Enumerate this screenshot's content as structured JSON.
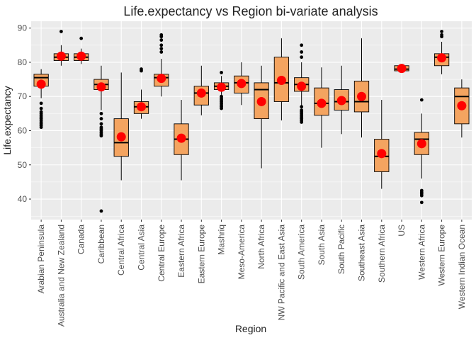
{
  "chart_data": {
    "type": "boxplot",
    "title": "Life.expectancy vs Region bi-variate analysis",
    "xlabel": "Region",
    "ylabel": "Life.expectancy",
    "ylim": [
      34,
      92
    ],
    "yticks": [
      40,
      50,
      60,
      70,
      80,
      90
    ],
    "grid": true,
    "box_color": "#f4a460",
    "mean_color": "#ff0000",
    "panel_color": "#ebebeb",
    "categories": [
      "Arabian Peninsula",
      "Australia and New Zealand",
      "Canada",
      "Caribbean",
      "Central Africa",
      "Central Asia",
      "Central Europe",
      "Eastern Africa",
      "Eastern Europe",
      "Mashriq",
      "Meso-America",
      "North Africa",
      "NW Pacific and East Asia",
      "South America",
      "South Asia",
      "South Pacific",
      "Southeast Asia",
      "Southern Africa",
      "US",
      "Western Africa",
      "Western Europe",
      "Western Indian Ocean"
    ],
    "boxes": [
      {
        "wlo": 69.5,
        "q1": 73.0,
        "med": 75.5,
        "q3": 76.5,
        "whi": 78.0,
        "mean": 73.6,
        "outliers": [
          68,
          66.5,
          65.5,
          65,
          64.5,
          64,
          63.5,
          63,
          62.5,
          62,
          61.5,
          61
        ]
      },
      {
        "wlo": 79.0,
        "q1": 80.5,
        "med": 81.5,
        "q3": 82.5,
        "whi": 85.0,
        "mean": 81.8,
        "outliers": [
          89
        ]
      },
      {
        "wlo": 79.5,
        "q1": 80.5,
        "med": 81.5,
        "q3": 82.5,
        "whi": 84.0,
        "mean": 81.8,
        "outliers": [
          87
        ]
      },
      {
        "wlo": 66.0,
        "q1": 72.0,
        "med": 73.5,
        "q3": 75.0,
        "whi": 79.0,
        "mean": 72.8,
        "outliers": [
          65,
          63.5,
          62,
          61,
          60.5,
          60,
          59.5,
          59,
          58.5,
          36.5
        ]
      },
      {
        "wlo": 45.5,
        "q1": 52.5,
        "med": 56.5,
        "q3": 63.5,
        "whi": 77.0,
        "mean": 58.2,
        "outliers": []
      },
      {
        "wlo": 63.5,
        "q1": 65.0,
        "med": 67.0,
        "q3": 68.5,
        "whi": 72.0,
        "mean": 67.0,
        "outliers": [
          77.5,
          78
        ]
      },
      {
        "wlo": 70.0,
        "q1": 73.0,
        "med": 75.5,
        "q3": 76.5,
        "whi": 81.0,
        "mean": 75.3,
        "outliers": [
          83,
          84,
          85,
          86.5,
          87.5,
          88
        ]
      },
      {
        "wlo": 45.5,
        "q1": 53.0,
        "med": 57.5,
        "q3": 62.0,
        "whi": 69.0,
        "mean": 57.8,
        "outliers": []
      },
      {
        "wlo": 64.5,
        "q1": 67.5,
        "med": 71.0,
        "q3": 73.0,
        "whi": 79.0,
        "mean": 71.0,
        "outliers": []
      },
      {
        "wlo": 70.5,
        "q1": 72.0,
        "med": 73.0,
        "q3": 74.0,
        "whi": 76.0,
        "mean": 72.7,
        "outliers": [
          77,
          70,
          69.5,
          69,
          68.5,
          68,
          67.5,
          67,
          66.5
        ]
      },
      {
        "wlo": 67.5,
        "q1": 71.0,
        "med": 74.0,
        "q3": 76.0,
        "whi": 80.0,
        "mean": 73.8,
        "outliers": []
      },
      {
        "wlo": 49.0,
        "q1": 63.5,
        "med": 72.0,
        "q3": 74.0,
        "whi": 79.0,
        "mean": 68.5,
        "outliers": []
      },
      {
        "wlo": 63.0,
        "q1": 68.5,
        "med": 74.0,
        "q3": 81.5,
        "whi": 87.0,
        "mean": 74.7,
        "outliers": []
      },
      {
        "wlo": 67.0,
        "q1": 71.5,
        "med": 73.5,
        "q3": 75.5,
        "whi": 80.0,
        "mean": 73.0,
        "outliers": [
          85,
          83,
          81.5,
          67,
          66,
          65.5,
          65,
          64.5,
          64,
          63.5,
          63,
          62.5
        ]
      },
      {
        "wlo": 55.0,
        "q1": 64.5,
        "med": 68.0,
        "q3": 72.5,
        "whi": 78.5,
        "mean": 68.0,
        "outliers": []
      },
      {
        "wlo": 59.0,
        "q1": 66.0,
        "med": 68.5,
        "q3": 72.0,
        "whi": 79.0,
        "mean": 68.8,
        "outliers": []
      },
      {
        "wlo": 58.0,
        "q1": 65.5,
        "med": 68.5,
        "q3": 74.5,
        "whi": 87.0,
        "mean": 70.0,
        "outliers": []
      },
      {
        "wlo": 43.0,
        "q1": 48.0,
        "med": 52.5,
        "q3": 57.5,
        "whi": 69.0,
        "mean": 53.3,
        "outliers": []
      },
      {
        "wlo": 77.0,
        "q1": 77.5,
        "med": 78.0,
        "q3": 79.0,
        "whi": 79.5,
        "mean": 78.2,
        "outliers": []
      },
      {
        "wlo": 46.0,
        "q1": 53.0,
        "med": 57.5,
        "q3": 59.5,
        "whi": 65.0,
        "mean": 56.2,
        "outliers": [
          69,
          42.5,
          42,
          41.5,
          41,
          39
        ]
      },
      {
        "wlo": 76.5,
        "q1": 79.0,
        "med": 81.5,
        "q3": 82.5,
        "whi": 86.0,
        "mean": 81.3,
        "outliers": [
          87.5,
          88,
          89
        ]
      },
      {
        "wlo": 58.0,
        "q1": 62.0,
        "med": 70.0,
        "q3": 72.5,
        "whi": 75.0,
        "mean": 67.3,
        "outliers": []
      }
    ]
  }
}
